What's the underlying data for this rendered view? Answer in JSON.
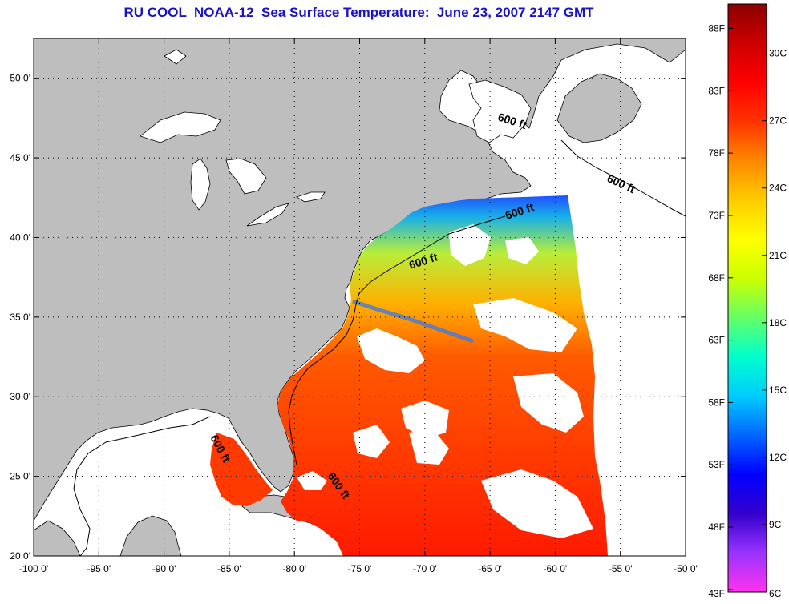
{
  "title": "RU COOL  NOAA-12  Sea Surface Temperature:  June 23, 2007 2147 GMT",
  "map": {
    "lon_range": [
      -100,
      -50
    ],
    "lat_range": [
      20,
      52.5
    ],
    "x_ticks": [
      -100,
      -95,
      -90,
      -85,
      -80,
      -75,
      -70,
      -65,
      -60,
      -55,
      -50
    ],
    "x_tick_labels": [
      "-100 0'",
      "-95 0'",
      "-90 0'",
      "-85 0'",
      "-80 0'",
      "-75 0'",
      "-70 0'",
      "-65 0'",
      "-60 0'",
      "-55 0'",
      "-50 0'"
    ],
    "y_ticks": [
      20,
      25,
      30,
      35,
      40,
      45,
      50
    ],
    "y_tick_labels": [
      "20 0'",
      "25 0'",
      "30 0'",
      "35 0'",
      "40 0'",
      "45 0'",
      "50 0'"
    ],
    "grid": "dotted",
    "colors": {
      "land": "#bebebe",
      "no_data": "#ffffff",
      "frame": "#000000"
    },
    "contour_label": "600 ft",
    "contour_label_count": 6
  },
  "colorbar": {
    "celsius_labels": [
      "30C",
      "27C",
      "24C",
      "21C",
      "18C",
      "15C",
      "12C",
      "9C",
      "6C"
    ],
    "celsius_values": [
      30,
      27,
      24,
      21,
      18,
      15,
      12,
      9,
      6
    ],
    "fahrenheit_labels": [
      "88F",
      "83F",
      "78F",
      "73F",
      "68F",
      "63F",
      "58F",
      "53F",
      "48F",
      "43F"
    ],
    "fahrenheit_values": [
      88,
      83,
      78,
      73,
      68,
      63,
      58,
      53,
      48,
      43
    ],
    "range_c": [
      6,
      32.2
    ],
    "stops": [
      "#ff33ee",
      "#9933ff",
      "#3300cc",
      "#0000ff",
      "#0066ff",
      "#00ccff",
      "#00ffcc",
      "#66ff66",
      "#ccff00",
      "#ffff00",
      "#ffcc00",
      "#ff8800",
      "#ff3300",
      "#ff0000",
      "#cc0000",
      "#8b0000"
    ]
  }
}
